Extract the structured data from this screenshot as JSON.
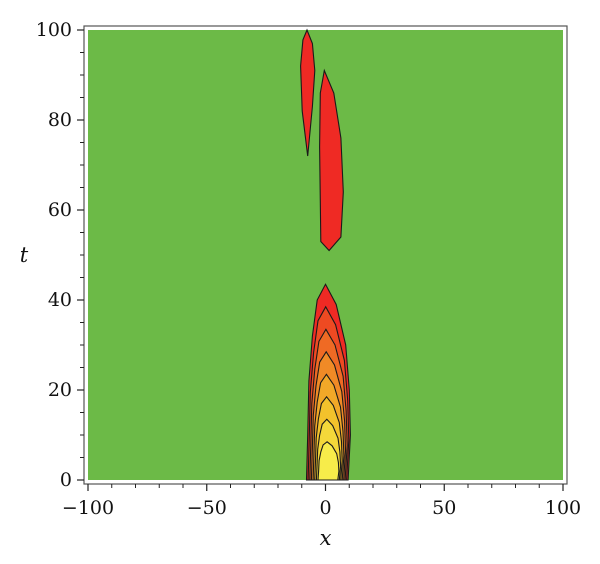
{
  "chart_data": {
    "type": "contour",
    "xlabel": "x",
    "ylabel": "t",
    "xlim": [
      -100,
      100
    ],
    "ylim": [
      0,
      100
    ],
    "x_ticks": [
      -100,
      -50,
      0,
      50,
      100
    ],
    "y_ticks": [
      0,
      20,
      40,
      60,
      80,
      100
    ],
    "x_tick_labels": [
      "−100",
      "−50",
      "0",
      "50",
      "100"
    ],
    "y_tick_labels": [
      "0",
      "20",
      "40",
      "60",
      "80",
      "100"
    ],
    "colors": {
      "background": "#6cba47",
      "outline": "#1a1a1a",
      "frame": "#555555",
      "levels": [
        "#ef2a24",
        "#ee4a22",
        "#ef6a24",
        "#f08a26",
        "#f2a828",
        "#f3c22c",
        "#f4d83a",
        "#f7ec4a"
      ]
    },
    "regions": [
      {
        "name": "upper-left-lobe",
        "level": 0,
        "outline": [
          [
            -7.8,
            100
          ],
          [
            -5.5,
            97
          ],
          [
            -4.5,
            91
          ],
          [
            -5.5,
            83
          ],
          [
            -7.5,
            72
          ],
          [
            -9.8,
            82
          ],
          [
            -10.5,
            92
          ],
          [
            -9.5,
            97.8
          ]
        ]
      },
      {
        "name": "upper-main-lobe",
        "level": 0,
        "outline": [
          [
            -0.5,
            91
          ],
          [
            3.5,
            86
          ],
          [
            6.5,
            76
          ],
          [
            7.5,
            64
          ],
          [
            6.5,
            54
          ],
          [
            1.5,
            51
          ],
          [
            -2,
            53
          ],
          [
            -2.2,
            62
          ],
          [
            -2.5,
            74
          ],
          [
            -2.2,
            86
          ]
        ]
      },
      {
        "name": "lower-lobe",
        "level": 0,
        "nested_levels": 8,
        "outline": [
          [
            0,
            43.5
          ],
          [
            4.5,
            39
          ],
          [
            8.5,
            30
          ],
          [
            10,
            20
          ],
          [
            10.5,
            10
          ],
          [
            9.5,
            0
          ],
          [
            -8,
            0
          ],
          [
            -7.5,
            10
          ],
          [
            -7,
            22
          ],
          [
            -5.5,
            32
          ],
          [
            -3.5,
            40
          ]
        ]
      }
    ]
  }
}
